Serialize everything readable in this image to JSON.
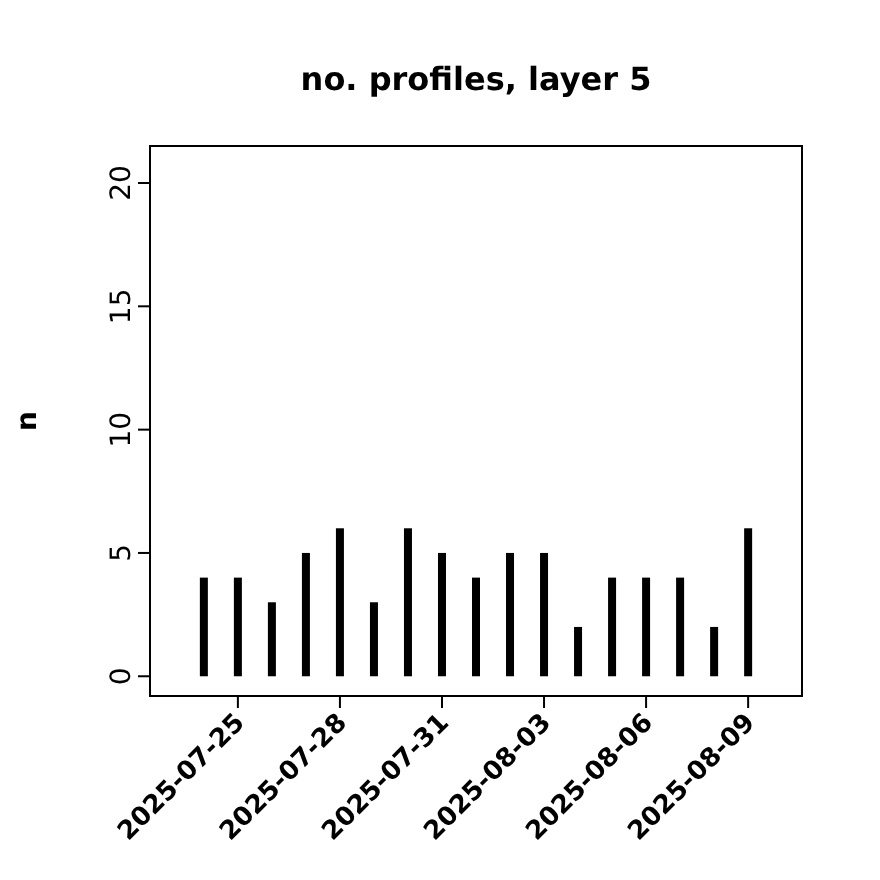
{
  "chart_data": {
    "type": "bar",
    "title": "no. profiles, layer 5",
    "ylabel": "n",
    "x": [
      "2025-07-24",
      "2025-07-25",
      "2025-07-26",
      "2025-07-27",
      "2025-07-28",
      "2025-07-29",
      "2025-07-30",
      "2025-07-31",
      "2025-08-01",
      "2025-08-02",
      "2025-08-03",
      "2025-08-04",
      "2025-08-05",
      "2025-08-06",
      "2025-08-07",
      "2025-08-08",
      "2025-08-09"
    ],
    "values": [
      4,
      4,
      3,
      5,
      6,
      3,
      6,
      5,
      4,
      5,
      5,
      2,
      4,
      4,
      4,
      2,
      6
    ],
    "color": "#000000",
    "xlim": [
      "2025-07-22T10:00",
      "2025-08-10T14:00"
    ],
    "xticks": [
      "2025-07-25",
      "2025-07-28",
      "2025-07-31",
      "2025-08-03",
      "2025-08-06",
      "2025-08-09"
    ],
    "ylim": [
      -0.8,
      21.5
    ],
    "yticks": [
      0,
      5,
      10,
      15,
      20
    ],
    "grid": false
  }
}
